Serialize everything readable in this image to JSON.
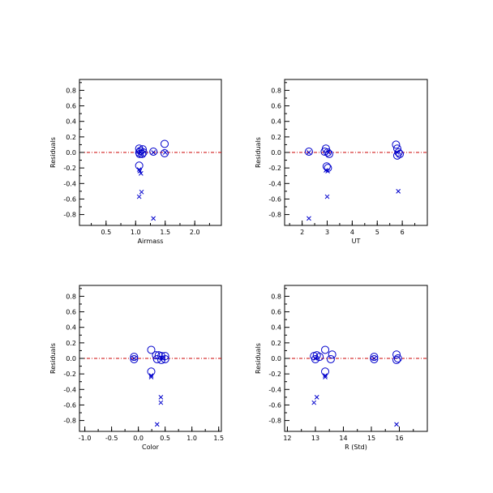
{
  "colors": {
    "marker": "#0000cc",
    "zero_line": "#cc0000",
    "axes": "#000000"
  },
  "chart_data": [
    {
      "type": "scatter",
      "xlabel": "Airmass",
      "ylabel": "Residuals",
      "xlim": [
        0.05,
        2.45
      ],
      "ylim": [
        -0.94,
        0.94
      ],
      "xticks": [
        "0.5",
        "1.0",
        "1.5",
        "2.0"
      ],
      "yticks": [
        "-0.8",
        "-0.6",
        "-0.4",
        "-0.2",
        "0.0",
        "0.2",
        "0.4",
        "0.6",
        "0.8"
      ],
      "reference_line": {
        "y": 0.0,
        "style": "dash-dot"
      },
      "series": [
        {
          "marker": "circle",
          "points": [
            [
              1.06,
              0.05
            ],
            [
              1.08,
              0.02
            ],
            [
              1.12,
              0.04
            ],
            [
              1.06,
              0.0
            ],
            [
              1.07,
              -0.02
            ],
            [
              1.11,
              -0.02
            ],
            [
              1.13,
              0.0
            ],
            [
              1.06,
              -0.17
            ],
            [
              1.3,
              0.01
            ],
            [
              1.49,
              0.11
            ],
            [
              1.49,
              -0.01
            ]
          ]
        },
        {
          "marker": "cross",
          "points": [
            [
              1.06,
              -0.22
            ],
            [
              1.07,
              -0.24
            ],
            [
              1.09,
              -0.27
            ],
            [
              1.06,
              -0.57
            ],
            [
              1.1,
              -0.51
            ],
            [
              1.3,
              -0.85
            ],
            [
              1.08,
              0.0
            ],
            [
              1.3,
              0.0
            ],
            [
              1.5,
              0.0
            ]
          ]
        }
      ]
    },
    {
      "type": "scatter",
      "xlabel": "UT",
      "ylabel": "Residuals",
      "xlim": [
        1.3,
        7.0
      ],
      "ylim": [
        -0.94,
        0.94
      ],
      "xticks": [
        "2",
        "3",
        "4",
        "5",
        "6"
      ],
      "yticks": [
        "-0.8",
        "-0.6",
        "-0.4",
        "-0.2",
        "0.0",
        "0.2",
        "0.4",
        "0.6",
        "0.8"
      ],
      "reference_line": {
        "y": 0.0,
        "style": "dash-dot"
      },
      "series": [
        {
          "marker": "circle",
          "points": [
            [
              2.27,
              0.01
            ],
            [
              2.9,
              0.01
            ],
            [
              2.95,
              0.05
            ],
            [
              3.02,
              0.0
            ],
            [
              3.08,
              -0.02
            ],
            [
              2.98,
              -0.18
            ],
            [
              3.03,
              -0.2
            ],
            [
              5.75,
              0.1
            ],
            [
              5.8,
              0.05
            ],
            [
              5.85,
              0.0
            ],
            [
              5.9,
              -0.02
            ],
            [
              5.8,
              -0.04
            ]
          ]
        },
        {
          "marker": "cross",
          "points": [
            [
              2.27,
              0.0
            ],
            [
              2.95,
              -0.23
            ],
            [
              3.02,
              -0.24
            ],
            [
              3.0,
              -0.57
            ],
            [
              2.27,
              -0.85
            ],
            [
              5.84,
              -0.5
            ],
            [
              5.8,
              0.0
            ],
            [
              3.05,
              0.0
            ]
          ]
        }
      ]
    },
    {
      "type": "scatter",
      "xlabel": "Color",
      "ylabel": "Residuals",
      "xlim": [
        -1.1,
        1.55
      ],
      "ylim": [
        -0.94,
        0.94
      ],
      "xticks": [
        "-1.0",
        "-0.5",
        "0.0",
        "0.5",
        "1.0",
        "1.5"
      ],
      "yticks": [
        "-0.8",
        "-0.6",
        "-0.4",
        "-0.2",
        "0.0",
        "0.2",
        "0.4",
        "0.6",
        "0.8"
      ],
      "reference_line": {
        "y": 0.0,
        "style": "dash-dot"
      },
      "series": [
        {
          "marker": "circle",
          "points": [
            [
              -0.08,
              0.02
            ],
            [
              -0.08,
              -0.01
            ],
            [
              0.24,
              0.11
            ],
            [
              0.24,
              -0.17
            ],
            [
              0.33,
              0.04
            ],
            [
              0.38,
              0.04
            ],
            [
              0.43,
              0.03
            ],
            [
              0.5,
              0.03
            ],
            [
              0.35,
              -0.01
            ],
            [
              0.43,
              -0.02
            ],
            [
              0.5,
              -0.01
            ]
          ]
        },
        {
          "marker": "cross",
          "points": [
            [
              0.24,
              -0.22
            ],
            [
              0.24,
              -0.24
            ],
            [
              0.42,
              -0.5
            ],
            [
              0.42,
              -0.57
            ],
            [
              0.35,
              -0.85
            ],
            [
              -0.08,
              0.0
            ],
            [
              0.45,
              0.0
            ]
          ]
        }
      ]
    },
    {
      "type": "scatter",
      "xlabel": "R (Std)",
      "ylabel": "Residuals",
      "xlim": [
        11.9,
        17.0
      ],
      "ylim": [
        -0.94,
        0.94
      ],
      "xticks": [
        "12",
        "13",
        "14",
        "15",
        "16"
      ],
      "yticks": [
        "-0.8",
        "-0.6",
        "-0.4",
        "-0.2",
        "0.0",
        "0.2",
        "0.4",
        "0.6",
        "0.8"
      ],
      "reference_line": {
        "y": 0.0,
        "style": "dash-dot"
      },
      "series": [
        {
          "marker": "circle",
          "points": [
            [
              12.95,
              0.03
            ],
            [
              13.05,
              0.04
            ],
            [
              13.15,
              0.02
            ],
            [
              13.0,
              -0.01
            ],
            [
              13.35,
              0.11
            ],
            [
              13.35,
              -0.17
            ],
            [
              13.6,
              0.05
            ],
            [
              13.55,
              -0.01
            ],
            [
              15.1,
              0.02
            ],
            [
              15.1,
              -0.01
            ],
            [
              15.9,
              0.05
            ],
            [
              15.95,
              0.0
            ],
            [
              15.9,
              -0.02
            ]
          ]
        },
        {
          "marker": "cross",
          "points": [
            [
              13.35,
              -0.22
            ],
            [
              13.35,
              -0.24
            ],
            [
              12.95,
              -0.57
            ],
            [
              13.05,
              -0.5
            ],
            [
              15.9,
              -0.85
            ],
            [
              13.0,
              0.0
            ],
            [
              15.1,
              0.0
            ]
          ]
        }
      ]
    }
  ]
}
